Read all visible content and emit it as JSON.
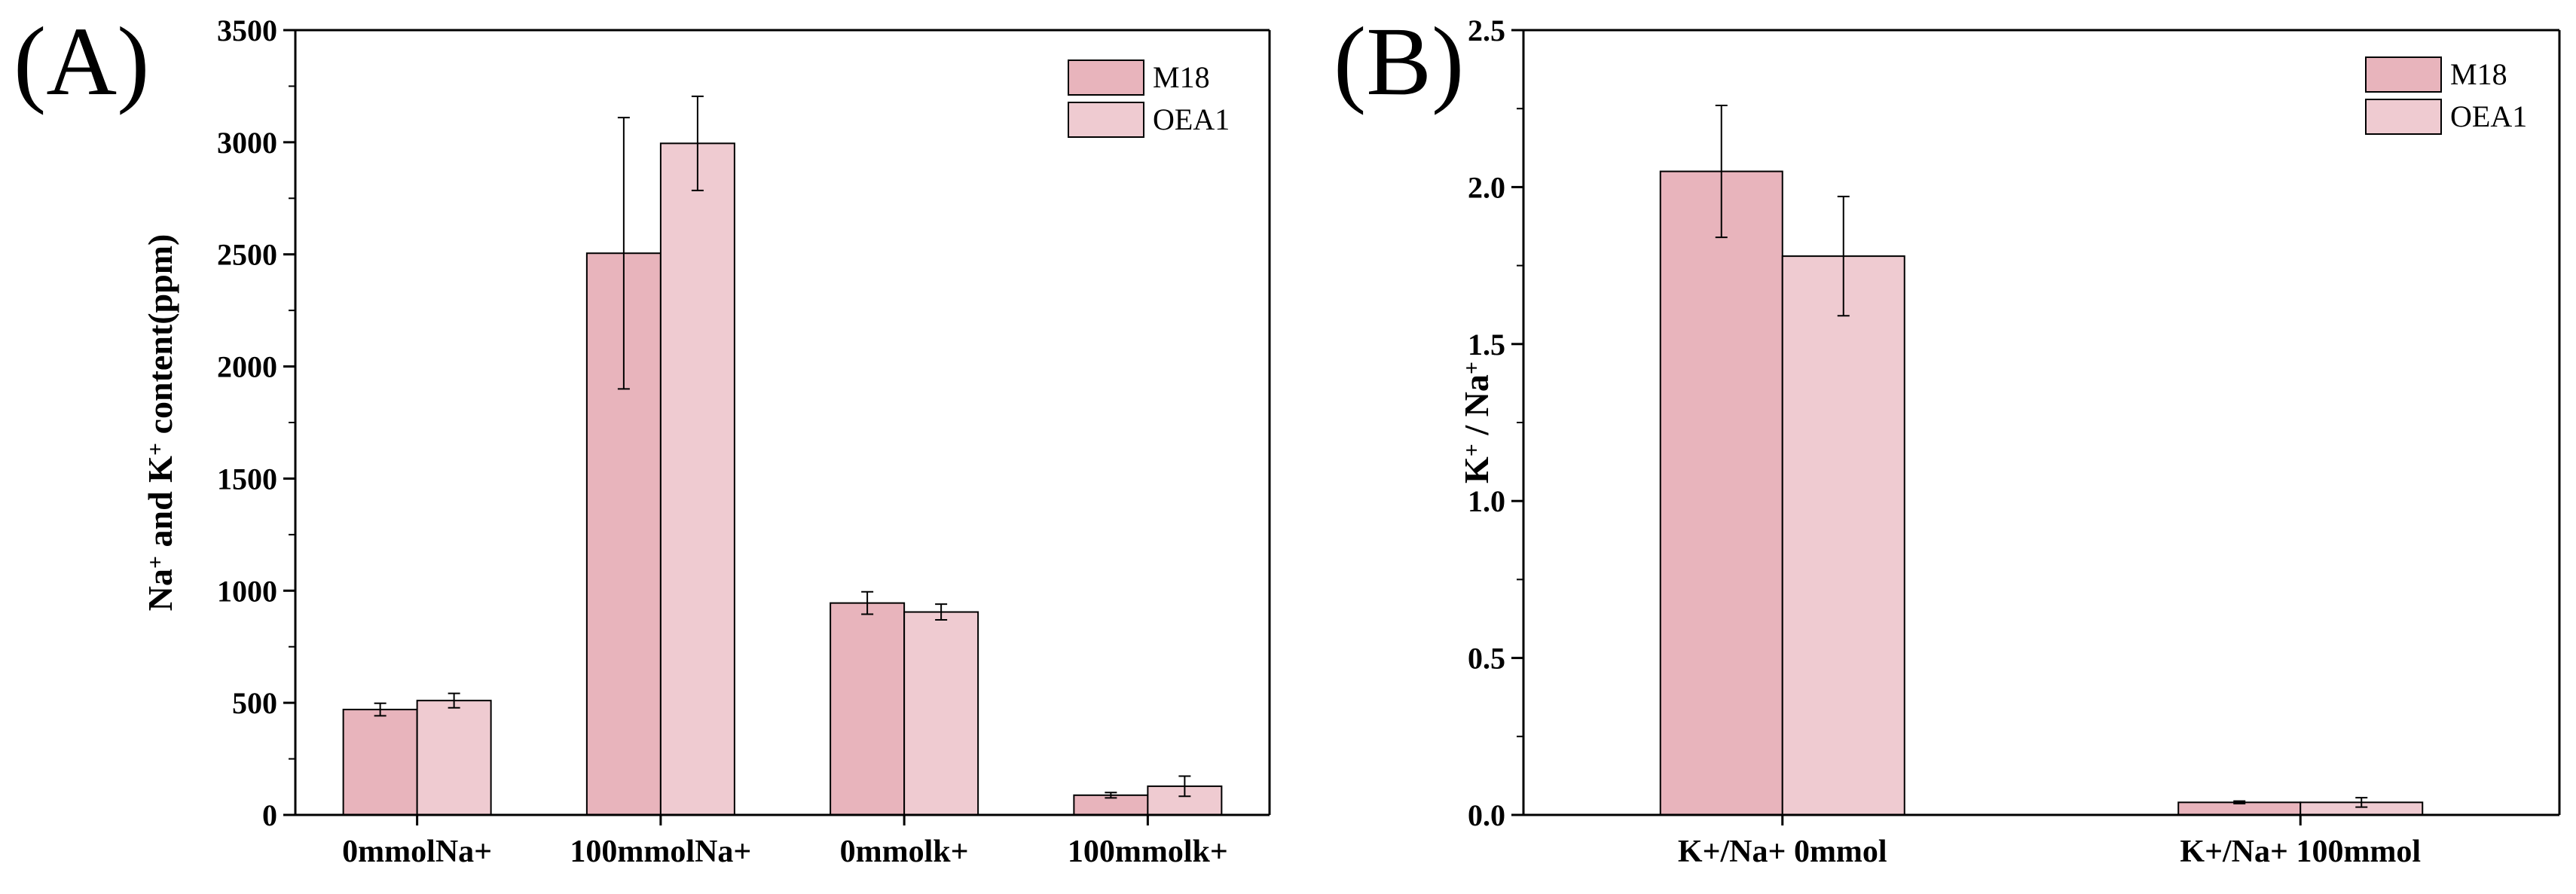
{
  "chart_data": [
    {
      "panel": "(A)",
      "type": "bar",
      "title": "",
      "xlabel": "",
      "ylabel_parts": [
        "Na",
        "+",
        " and K",
        "+",
        " content(ppm)"
      ],
      "ylim": [
        0,
        3500
      ],
      "yticks": [
        0,
        500,
        1000,
        1500,
        2000,
        2500,
        3000,
        3500
      ],
      "categories": [
        "0mmolNa+",
        "100mmolNa+",
        "0mmolk+",
        "100mmolk+"
      ],
      "series": [
        {
          "name": "M18",
          "color": "#e8b4bc",
          "values": [
            470,
            2505,
            945,
            88
          ],
          "errors": [
            28,
            605,
            50,
            12
          ]
        },
        {
          "name": "OEA1",
          "color": "#efcbd1",
          "values": [
            510,
            2995,
            905,
            128
          ],
          "errors": [
            32,
            210,
            35,
            45
          ]
        }
      ],
      "legend": "top-right"
    },
    {
      "panel": "(B)",
      "type": "bar",
      "title": "",
      "xlabel": "",
      "ylabel_parts": [
        "K",
        "+",
        " / Na",
        "+",
        ""
      ],
      "ylim": [
        0,
        2.5
      ],
      "yticks": [
        0.0,
        0.5,
        1.0,
        1.5,
        2.0,
        2.5
      ],
      "ytick_decimals": 1,
      "categories": [
        "K+/Na+ 0mmol",
        "K+/Na+ 100mmol"
      ],
      "series": [
        {
          "name": "M18",
          "color": "#e8b4bc",
          "values": [
            2.05,
            0.04
          ],
          "errors": [
            0.21,
            0.004
          ]
        },
        {
          "name": "OEA1",
          "color": "#efcbd1",
          "values": [
            1.78,
            0.04
          ],
          "errors": [
            0.19,
            0.015
          ]
        }
      ],
      "legend": "top-right"
    }
  ]
}
